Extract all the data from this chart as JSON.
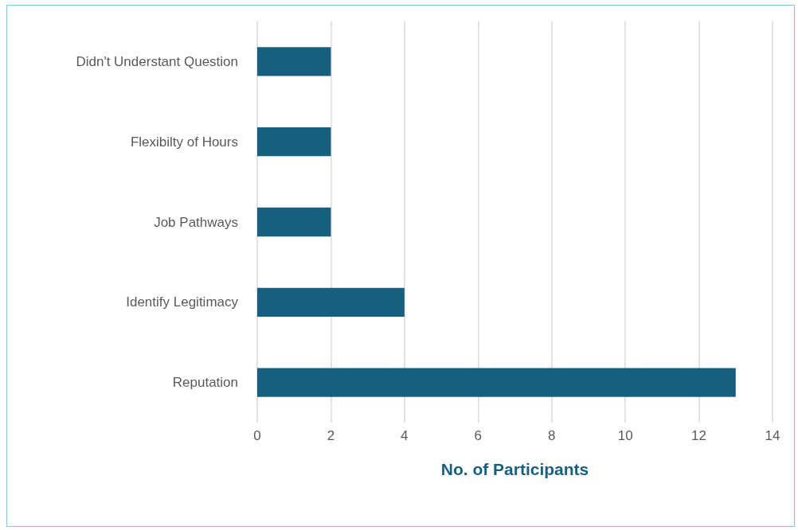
{
  "chart_data": {
    "type": "bar",
    "orientation": "horizontal",
    "xlabel": "No. of Participants",
    "categories": [
      "Didn't Understant Question",
      "Flexibilty of Hours",
      "Job Pathways",
      "Identify Legitimacy",
      "Reputation"
    ],
    "values": [
      2,
      2,
      2,
      4,
      13
    ],
    "color": "#175f80",
    "xlim": [
      0,
      14
    ],
    "xticks": [
      0,
      2,
      4,
      6,
      8,
      10,
      12,
      14
    ],
    "grid": "x"
  }
}
